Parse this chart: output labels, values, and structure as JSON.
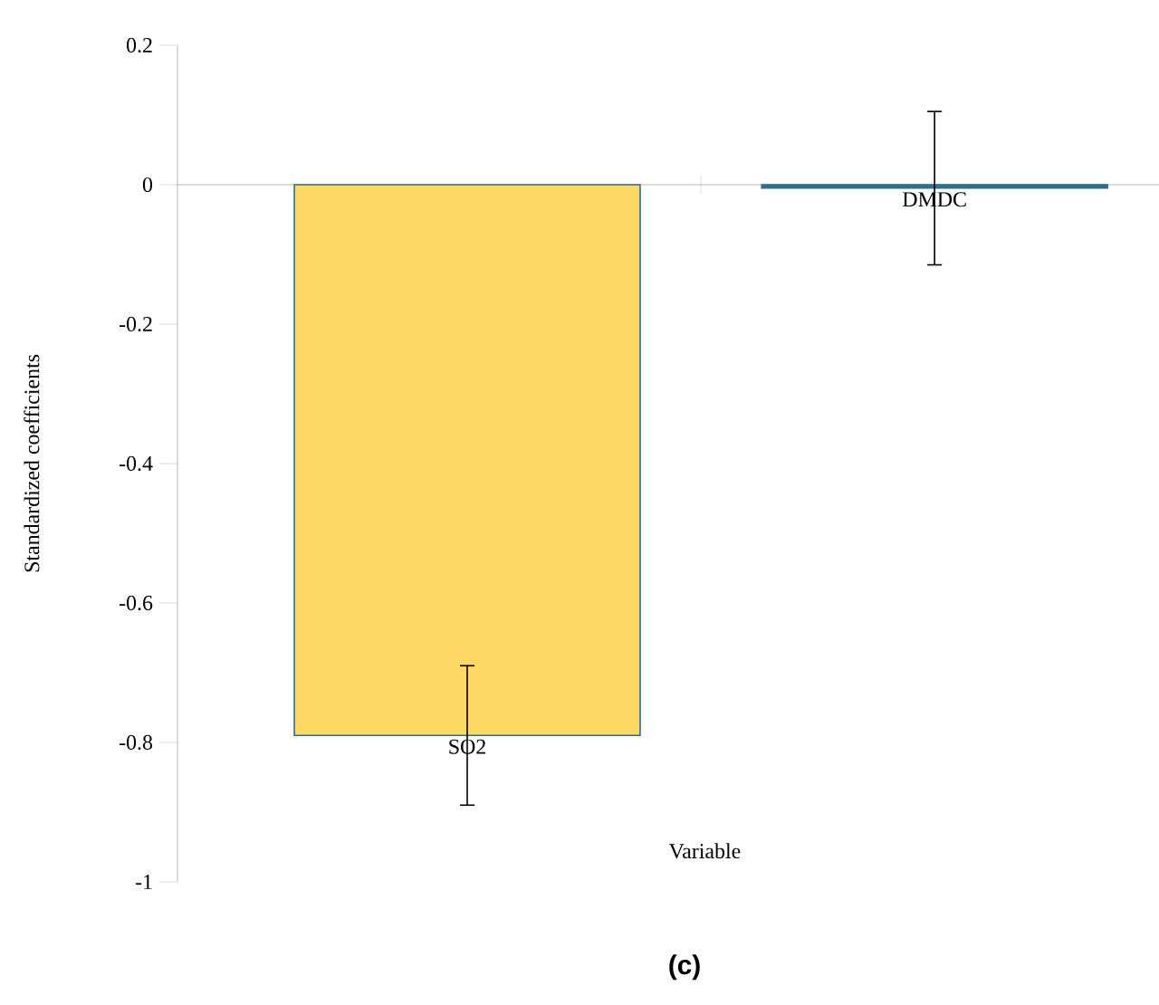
{
  "chart_data": {
    "type": "bar",
    "title": "(c)",
    "xlabel": "Variable",
    "ylabel": "Standardized coefficients",
    "categories": [
      "SO2",
      "DMDC"
    ],
    "values": [
      -0.79,
      -0.005
    ],
    "errors": [
      0.1,
      0.11
    ],
    "colors": [
      "#ffd966",
      "#2e6e8e"
    ],
    "ylim": [
      -1,
      0.2
    ],
    "yticks": [
      -1,
      -0.8,
      -0.6,
      -0.4,
      -0.2,
      0,
      0.2
    ]
  }
}
